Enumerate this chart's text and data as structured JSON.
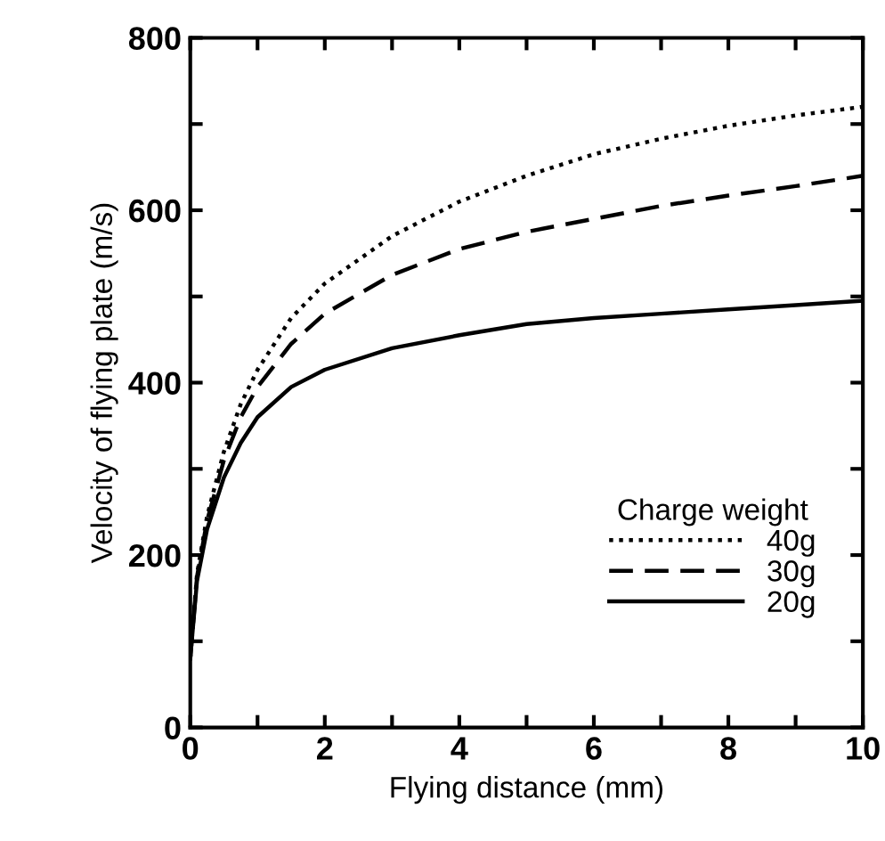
{
  "chart_data": {
    "type": "line",
    "xlabel": "Flying distance (mm)",
    "ylabel": "Velocity of flying plate (m/s)",
    "legend_title": "Charge weight",
    "legend": "bottom right",
    "grid": false,
    "xlim": [
      0,
      10
    ],
    "ylim": [
      0,
      800
    ],
    "xticks": [
      0,
      {
        "value": 1,
        "label": null
      },
      2,
      {
        "value": 3,
        "label": null
      },
      4,
      {
        "value": 5,
        "label": null
      },
      6,
      {
        "value": 7,
        "label": null
      },
      8,
      {
        "value": 9,
        "label": null
      },
      10
    ],
    "yticks": [
      0,
      {
        "value": 100,
        "label": null
      },
      200,
      {
        "value": 300,
        "label": null
      },
      400,
      {
        "value": 500,
        "label": null
      },
      600,
      {
        "value": 700,
        "label": null
      },
      800
    ],
    "x": [
      0,
      0.1,
      0.25,
      0.5,
      0.75,
      1,
      1.5,
      2,
      3,
      4,
      5,
      6,
      7,
      8,
      9,
      10
    ],
    "series": [
      {
        "name": "40g",
        "color": "#000000",
        "line_style": "dotted",
        "values": [
          80,
          178,
          245,
          320,
          375,
          415,
          475,
          515,
          570,
          610,
          640,
          665,
          683,
          698,
          710,
          720
        ]
      },
      {
        "name": "30g",
        "color": "#000000",
        "line_style": "dashed",
        "values": [
          80,
          175,
          240,
          310,
          360,
          395,
          445,
          480,
          525,
          555,
          575,
          590,
          605,
          617,
          628,
          640
        ]
      },
      {
        "name": "20g",
        "color": "#000000",
        "line_style": "solid",
        "values": [
          80,
          170,
          230,
          290,
          330,
          360,
          395,
          415,
          440,
          455,
          468,
          475,
          480,
          485,
          490,
          495
        ]
      }
    ]
  }
}
